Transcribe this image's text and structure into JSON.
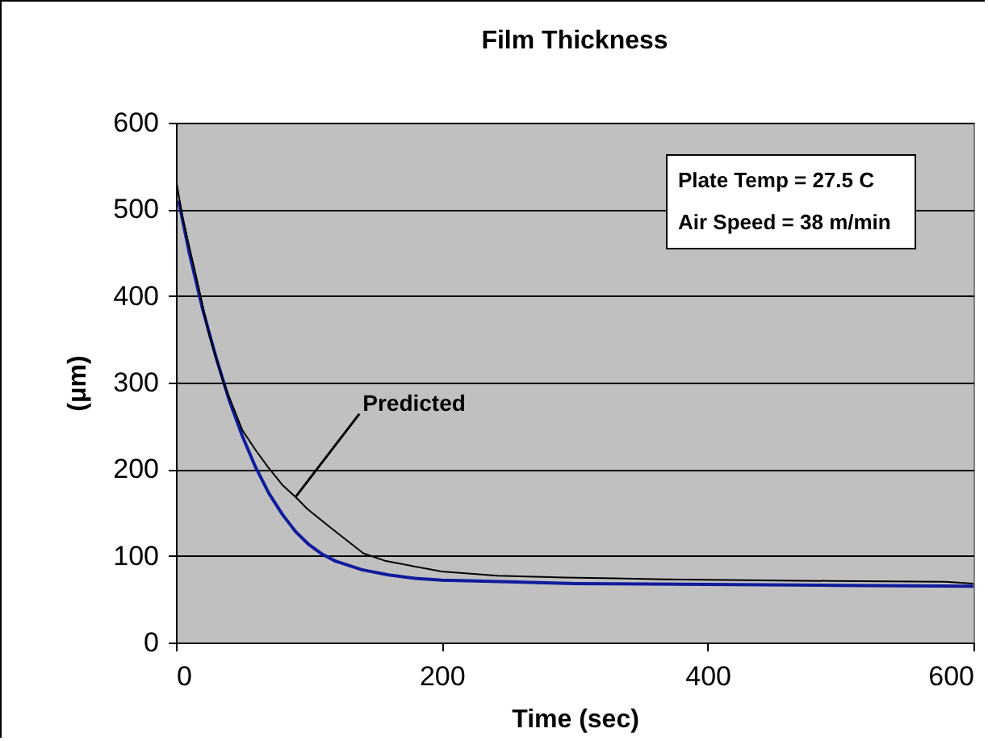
{
  "chart_data": {
    "type": "line",
    "title": "Film Thickness",
    "xlabel": "Time (sec)",
    "ylabel": "(μm)",
    "xlim": [
      0,
      600
    ],
    "xticks": [
      0,
      200,
      400,
      600
    ],
    "ylim": [
      0,
      600
    ],
    "yticks": [
      0,
      100,
      200,
      300,
      400,
      500,
      600
    ],
    "grid": "y",
    "legend": false,
    "annotations": [
      "Plate Temp = 27.5 C",
      "Air Speed = 38 m/min"
    ],
    "series": [
      {
        "color": "#101c9c",
        "x": [
          2,
          10,
          20,
          30,
          40,
          50,
          60,
          70,
          80,
          90,
          100,
          110,
          120,
          140,
          160,
          180,
          200,
          250,
          300,
          400,
          500,
          600
        ],
        "values": [
          510,
          450,
          385,
          330,
          280,
          238,
          202,
          172,
          148,
          128,
          113,
          102,
          94,
          84,
          78,
          74,
          72,
          70,
          68,
          67,
          66,
          65
        ]
      },
      {
        "name": "Predicted",
        "color": "#000000",
        "x": [
          0,
          5,
          15,
          25,
          36,
          50,
          60,
          69,
          80,
          90,
          99,
          116,
          141,
          158,
          200,
          242,
          293,
          368,
          495,
          579,
          600
        ],
        "values": [
          535,
          490,
          424,
          355,
          299,
          245,
          222,
          203,
          182,
          168,
          154,
          133,
          103,
          94,
          82,
          77,
          75,
          73,
          71,
          70,
          68
        ]
      }
    ]
  }
}
